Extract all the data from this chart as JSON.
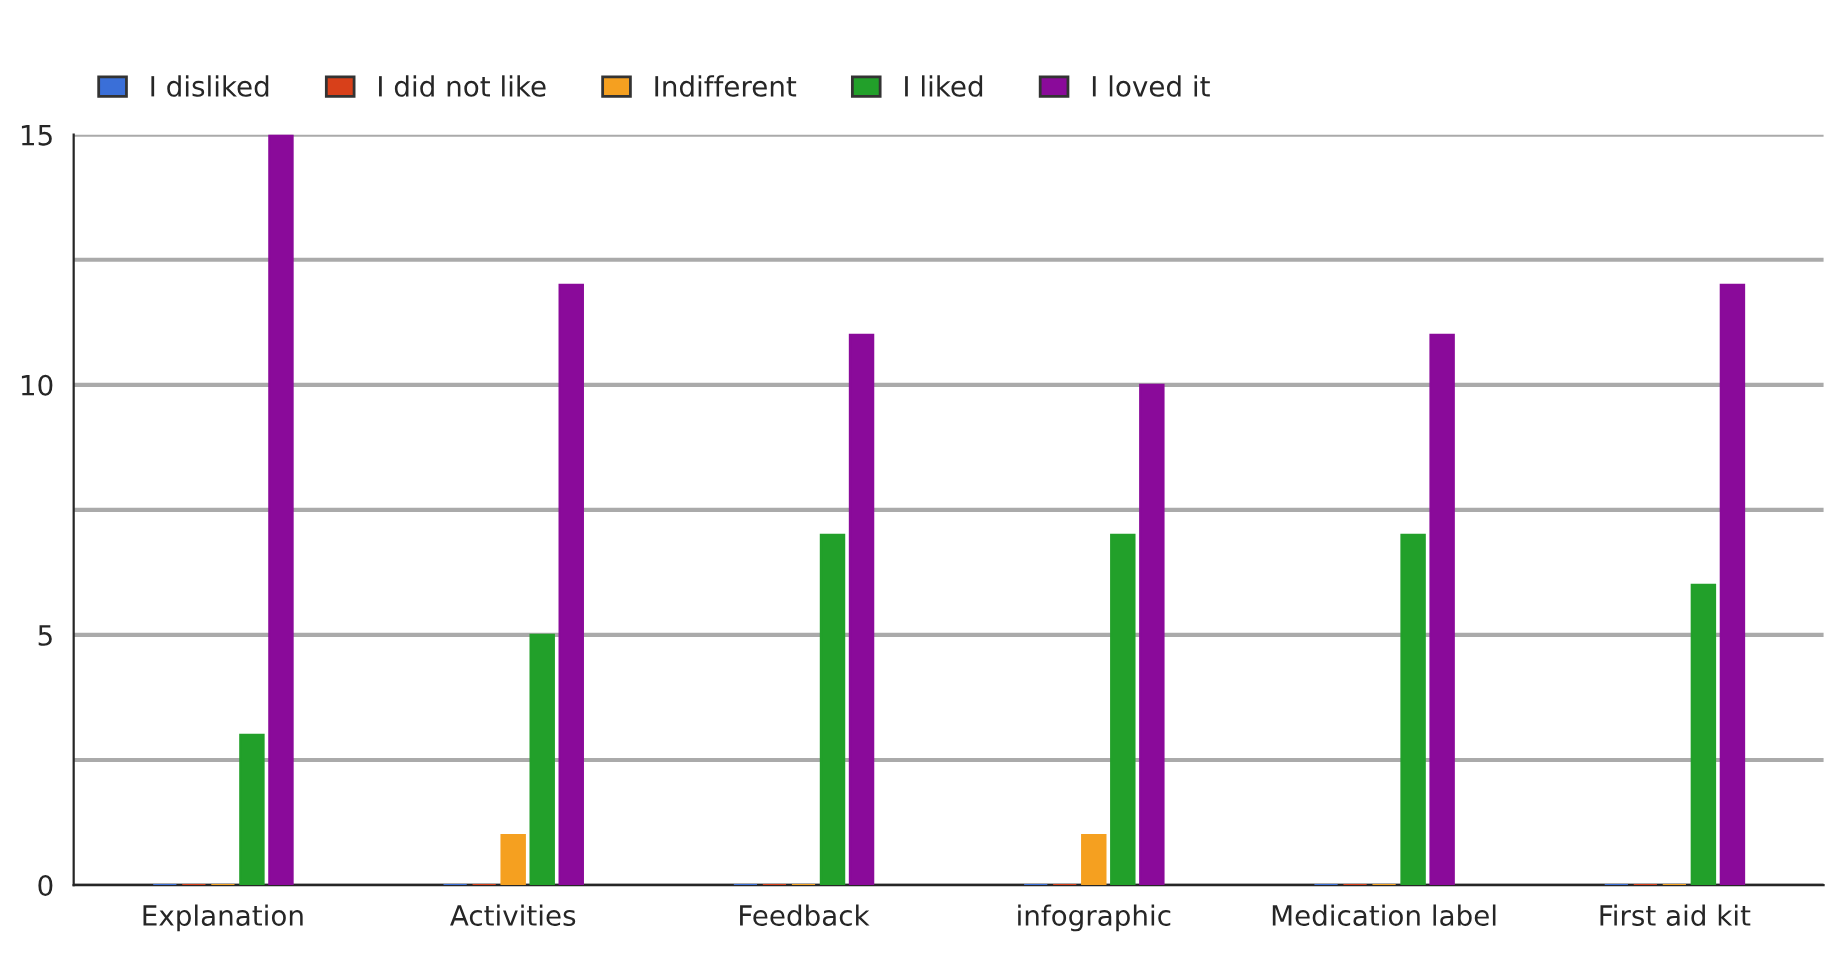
{
  "chart_data": {
    "type": "bar",
    "categories": [
      "Explanation",
      "Activities",
      "Feedback",
      "infographic",
      "Medication label",
      "First aid kit"
    ],
    "series": [
      {
        "name": "I disliked",
        "color": "#3a6fd8",
        "values": [
          0,
          0,
          0,
          0,
          0,
          0
        ]
      },
      {
        "name": "I did not like",
        "color": "#d8401a",
        "values": [
          0,
          0,
          0,
          0,
          0,
          0
        ]
      },
      {
        "name": "Indifferent",
        "color": "#f5a020",
        "values": [
          0,
          1,
          0,
          1,
          0,
          0
        ]
      },
      {
        "name": "I liked",
        "color": "#22a02a",
        "values": [
          3,
          5,
          7,
          7,
          7,
          6
        ]
      },
      {
        "name": "I loved it",
        "color": "#8a0a9a",
        "values": [
          15,
          12,
          11,
          10,
          11,
          12
        ]
      }
    ],
    "ylim": [
      0,
      15
    ],
    "yticks": [
      0,
      {
        "value": 2.5,
        "label": null
      },
      5,
      {
        "value": 7.5,
        "label": null
      },
      10,
      {
        "value": 12.5,
        "label": null
      },
      15
    ],
    "grid": "y",
    "legend": "top left"
  }
}
